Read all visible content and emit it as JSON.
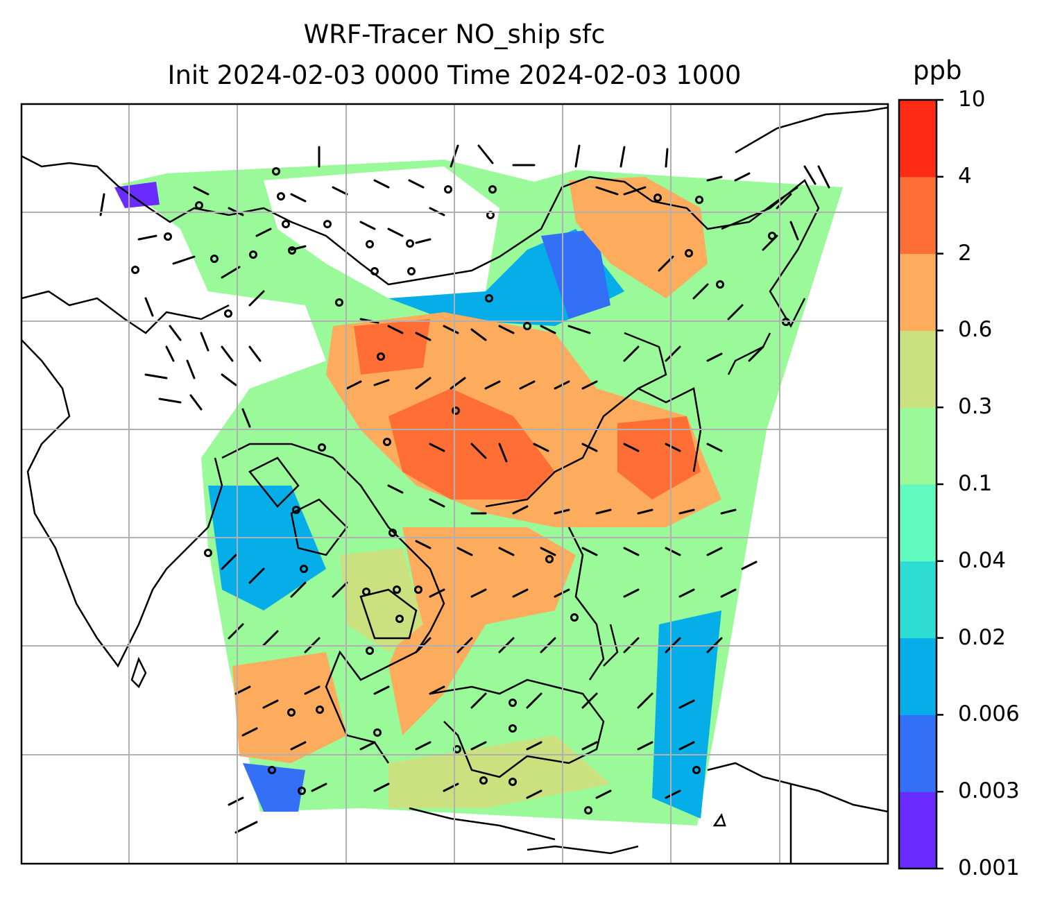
{
  "title": {
    "line1": "WRF-Tracer NO_ship sfc",
    "line2": "Init 2024-02-03 0000 Time 2024-02-03 1000"
  },
  "colorbar": {
    "unit": "ppb",
    "levels": [
      "0.001",
      "0.003",
      "0.006",
      "0.02",
      "0.04",
      "0.1",
      "0.3",
      "0.6",
      "2",
      "4",
      "10"
    ],
    "colors": [
      "#6a2bff",
      "#3370f5",
      "#05aee8",
      "#2ddcd3",
      "#61fbc0",
      "#9afa9a",
      "#cbe07f",
      "#fdac5d",
      "#ff6e34",
      "#ff2b14"
    ]
  }
}
